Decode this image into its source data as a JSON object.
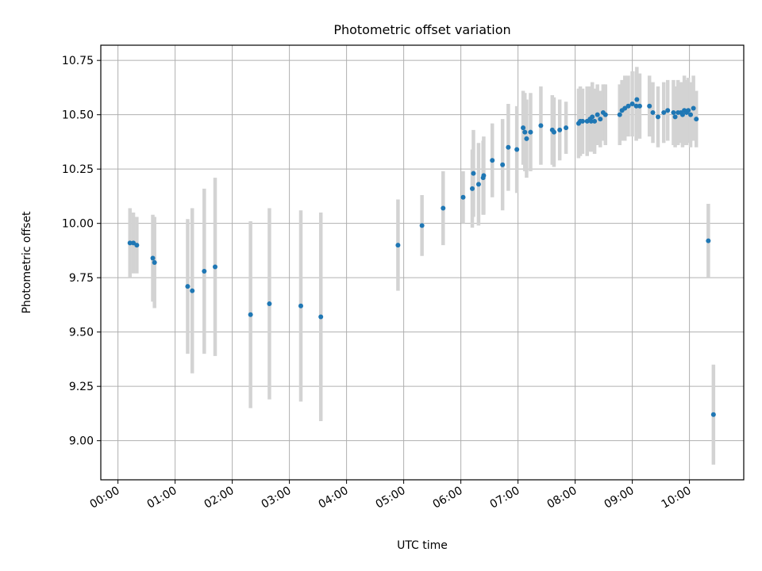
{
  "chart_data": {
    "type": "scatter",
    "title": "Photometric offset variation",
    "xlabel": "UTC time",
    "ylabel": "Photometric offset",
    "xlim": [
      -0.3,
      10.95
    ],
    "ylim": [
      8.82,
      10.82
    ],
    "grid": true,
    "x_unit": "hours",
    "xticks": [
      0,
      1,
      2,
      3,
      4,
      5,
      6,
      7,
      8,
      9,
      10
    ],
    "xtick_labels": [
      "00:00",
      "01:00",
      "02:00",
      "03:00",
      "04:00",
      "05:00",
      "06:00",
      "07:00",
      "08:00",
      "09:00",
      "10:00"
    ],
    "yticks": [
      9.0,
      9.25,
      9.5,
      9.75,
      10.0,
      10.25,
      10.5,
      10.75
    ],
    "ytick_labels": [
      "9.00",
      "9.25",
      "9.50",
      "9.75",
      "10.00",
      "10.25",
      "10.50",
      "10.75"
    ],
    "colors": {
      "marker": "#1f77b4",
      "errorbar": "#d3d3d3",
      "grid": "#b0b0b0"
    },
    "series": [
      {
        "name": "offset",
        "points": [
          [
            0.21,
            9.91,
            0.16
          ],
          [
            0.27,
            9.91,
            0.14
          ],
          [
            0.33,
            9.9,
            0.13
          ],
          [
            0.61,
            9.84,
            0.2
          ],
          [
            0.64,
            9.82,
            0.21
          ],
          [
            1.22,
            9.71,
            0.31
          ],
          [
            1.3,
            9.69,
            0.38
          ],
          [
            1.51,
            9.78,
            0.38
          ],
          [
            1.7,
            9.8,
            0.41
          ],
          [
            2.32,
            9.58,
            0.43
          ],
          [
            2.65,
            9.63,
            0.44
          ],
          [
            3.2,
            9.62,
            0.44
          ],
          [
            3.55,
            9.57,
            0.48
          ],
          [
            4.9,
            9.9,
            0.21
          ],
          [
            5.32,
            9.99,
            0.14
          ],
          [
            5.69,
            10.07,
            0.17
          ],
          [
            6.04,
            10.12,
            0.12
          ],
          [
            6.2,
            10.16,
            0.18
          ],
          [
            6.22,
            10.23,
            0.2
          ],
          [
            6.31,
            10.18,
            0.19
          ],
          [
            6.39,
            10.21,
            0.17
          ],
          [
            6.4,
            10.22,
            0.18
          ],
          [
            6.55,
            10.29,
            0.17
          ],
          [
            6.73,
            10.27,
            0.21
          ],
          [
            6.83,
            10.35,
            0.2
          ],
          [
            6.98,
            10.34,
            0.2
          ],
          [
            7.09,
            10.44,
            0.17
          ],
          [
            7.12,
            10.42,
            0.18
          ],
          [
            7.15,
            10.39,
            0.18
          ],
          [
            7.22,
            10.42,
            0.18
          ],
          [
            7.4,
            10.45,
            0.18
          ],
          [
            7.6,
            10.43,
            0.16
          ],
          [
            7.63,
            10.42,
            0.16
          ],
          [
            7.73,
            10.43,
            0.14
          ],
          [
            7.84,
            10.44,
            0.12
          ],
          [
            8.06,
            10.46,
            0.16
          ],
          [
            8.09,
            10.47,
            0.16
          ],
          [
            8.13,
            10.47,
            0.15
          ],
          [
            8.21,
            10.47,
            0.16
          ],
          [
            8.26,
            10.48,
            0.15
          ],
          [
            8.28,
            10.47,
            0.14
          ],
          [
            8.3,
            10.49,
            0.16
          ],
          [
            8.34,
            10.47,
            0.15
          ],
          [
            8.39,
            10.5,
            0.14
          ],
          [
            8.44,
            10.48,
            0.13
          ],
          [
            8.49,
            10.51,
            0.13
          ],
          [
            8.53,
            10.5,
            0.14
          ],
          [
            8.78,
            10.5,
            0.14
          ],
          [
            8.82,
            10.52,
            0.14
          ],
          [
            8.87,
            10.53,
            0.15
          ],
          [
            8.93,
            10.54,
            0.14
          ],
          [
            9.0,
            10.55,
            0.15
          ],
          [
            9.07,
            10.54,
            0.16
          ],
          [
            9.08,
            10.57,
            0.15
          ],
          [
            9.13,
            10.54,
            0.15
          ],
          [
            9.3,
            10.54,
            0.14
          ],
          [
            9.36,
            10.51,
            0.14
          ],
          [
            9.45,
            10.49,
            0.14
          ],
          [
            9.55,
            10.51,
            0.14
          ],
          [
            9.62,
            10.52,
            0.14
          ],
          [
            9.72,
            10.51,
            0.15
          ],
          [
            9.75,
            10.49,
            0.14
          ],
          [
            9.8,
            10.51,
            0.15
          ],
          [
            9.85,
            10.51,
            0.14
          ],
          [
            9.88,
            10.5,
            0.15
          ],
          [
            9.91,
            10.52,
            0.16
          ],
          [
            9.95,
            10.51,
            0.15
          ],
          [
            9.98,
            10.52,
            0.15
          ],
          [
            10.02,
            10.5,
            0.15
          ],
          [
            10.07,
            10.53,
            0.15
          ],
          [
            10.12,
            10.48,
            0.13
          ],
          [
            10.33,
            9.92,
            0.17
          ],
          [
            10.42,
            9.12,
            0.23
          ]
        ]
      }
    ]
  }
}
